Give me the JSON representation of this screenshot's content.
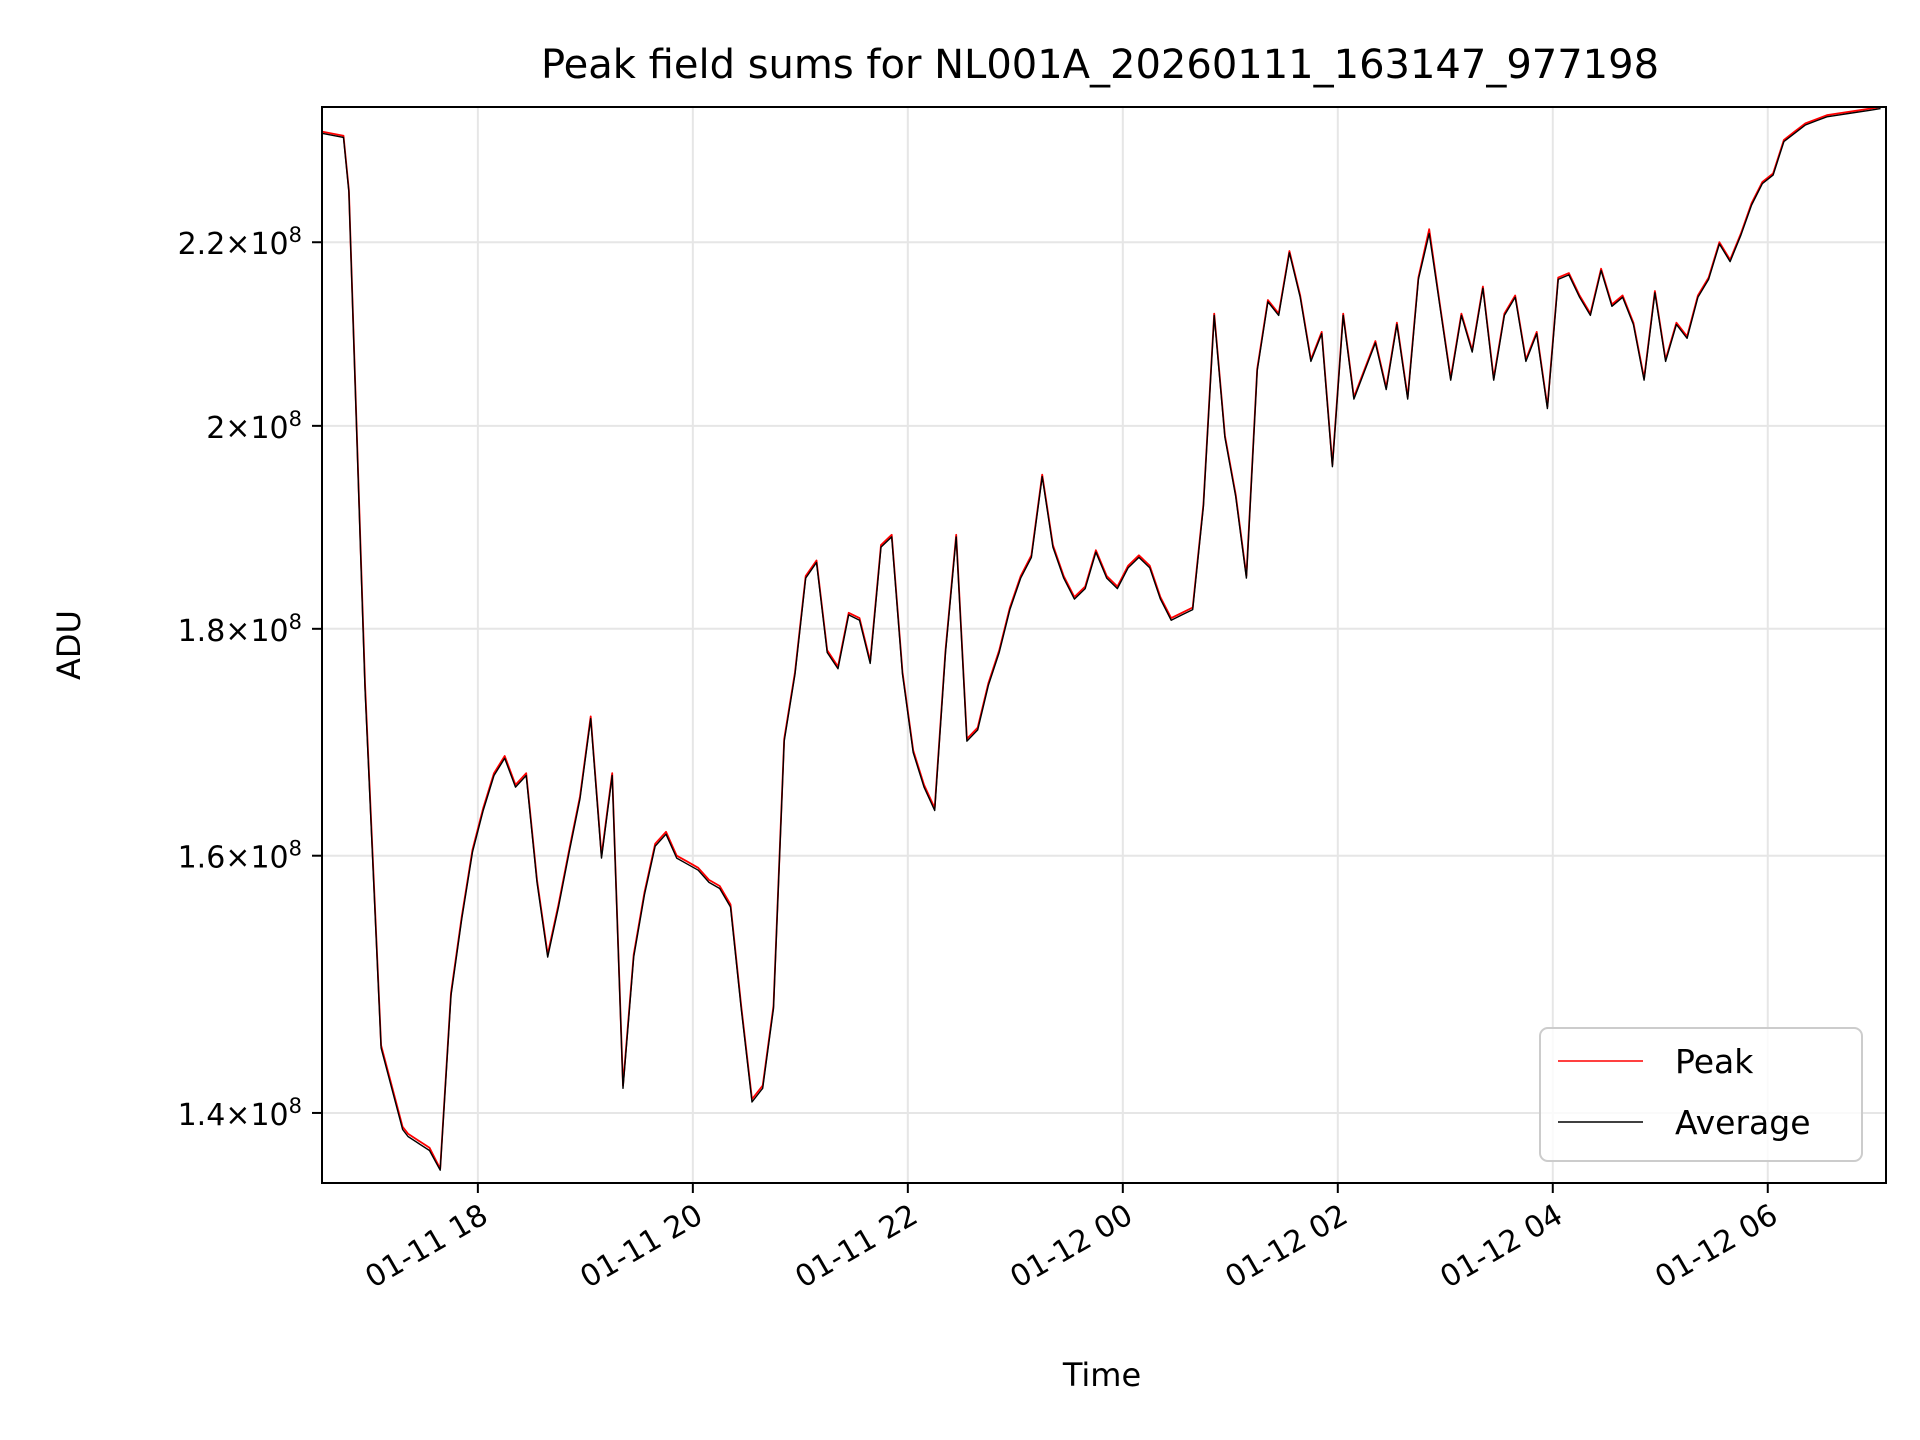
{
  "chart_data": {
    "type": "line",
    "title": "Peak field sums for NL001A_20260111_163147_977198",
    "xlabel": "Time",
    "ylabel": "ADU",
    "y_scale": "log",
    "xlim_hours": [
      16.55,
      31.1
    ],
    "ylim": [
      135000000,
      236000000
    ],
    "grid": true,
    "legend_position": "lower-right",
    "x_ticks": [
      {
        "hour": 18,
        "label": "01-11 18"
      },
      {
        "hour": 20,
        "label": "01-11 20"
      },
      {
        "hour": 22,
        "label": "01-11 22"
      },
      {
        "hour": 24,
        "label": "01-12 00"
      },
      {
        "hour": 26,
        "label": "01-12 02"
      },
      {
        "hour": 28,
        "label": "01-12 04"
      },
      {
        "hour": 30,
        "label": "01-12 06"
      }
    ],
    "y_ticks": [
      {
        "value": 140000000,
        "mantissa": "1.4",
        "base": "10",
        "exp": "8"
      },
      {
        "value": 160000000,
        "mantissa": "1.6",
        "base": "10",
        "exp": "8"
      },
      {
        "value": 180000000,
        "mantissa": "1.8",
        "base": "10",
        "exp": "8"
      },
      {
        "value": 200000000,
        "mantissa": "2",
        "base": "10",
        "exp": "8"
      },
      {
        "value": 220000000,
        "mantissa": "2.2",
        "base": "10",
        "exp": "8"
      }
    ],
    "x_hours": [
      16.55,
      16.75,
      16.8,
      16.95,
      17.1,
      17.3,
      17.35,
      17.45,
      17.55,
      17.65,
      17.75,
      17.85,
      17.95,
      18.05,
      18.15,
      18.25,
      18.35,
      18.45,
      18.55,
      18.65,
      18.75,
      18.85,
      18.95,
      19.05,
      19.15,
      19.25,
      19.35,
      19.45,
      19.55,
      19.65,
      19.75,
      19.85,
      19.95,
      20.05,
      20.15,
      20.25,
      20.35,
      20.45,
      20.55,
      20.65,
      20.75,
      20.85,
      20.95,
      21.05,
      21.15,
      21.25,
      21.35,
      21.45,
      21.55,
      21.65,
      21.75,
      21.85,
      21.95,
      22.05,
      22.15,
      22.25,
      22.35,
      22.45,
      22.55,
      22.65,
      22.75,
      22.85,
      22.95,
      23.05,
      23.15,
      23.25,
      23.35,
      23.45,
      23.55,
      23.65,
      23.75,
      23.85,
      23.95,
      24.05,
      24.15,
      24.25,
      24.35,
      24.45,
      24.55,
      24.65,
      24.75,
      24.85,
      24.95,
      25.05,
      25.15,
      25.25,
      25.35,
      25.45,
      25.55,
      25.65,
      25.75,
      25.85,
      25.95,
      26.05,
      26.15,
      26.25,
      26.35,
      26.45,
      26.55,
      26.65,
      26.75,
      26.85,
      26.95,
      27.05,
      27.15,
      27.25,
      27.35,
      27.45,
      27.55,
      27.65,
      27.75,
      27.85,
      27.95,
      28.05,
      28.15,
      28.25,
      28.35,
      28.45,
      28.55,
      28.65,
      28.75,
      28.85,
      28.95,
      29.05,
      29.15,
      29.25,
      29.35,
      29.45,
      29.55,
      29.65,
      29.75,
      29.85,
      29.95,
      30.05,
      30.15,
      30.25,
      30.35,
      30.45,
      30.55,
      30.65,
      30.75,
      30.85,
      30.95,
      31.05
    ],
    "series": [
      {
        "name": "Peak",
        "color": "#ff0000",
        "values": [
          233000000,
          232500000,
          226000000,
          175000000,
          145000000,
          139000000,
          138500000,
          138000000,
          137500000,
          136000000,
          149000000,
          155000000,
          160500000,
          164000000,
          167000000,
          168500000,
          166000000,
          167000000,
          158000000,
          152000000,
          156000000,
          160500000,
          165000000,
          172000000,
          160000000,
          167000000,
          142000000,
          152000000,
          157000000,
          161000000,
          162000000,
          160000000,
          159500000,
          159000000,
          158000000,
          157500000,
          156000000,
          148000000,
          141000000,
          142000000,
          148000000,
          170000000,
          176000000,
          185000000,
          186500000,
          178000000,
          176500000,
          181500000,
          181000000,
          177000000,
          188000000,
          189000000,
          176000000,
          169000000,
          166000000,
          164000000,
          178000000,
          189000000,
          170000000,
          171000000,
          175000000,
          178000000,
          182000000,
          185000000,
          187000000,
          195000000,
          188000000,
          185000000,
          183000000,
          184000000,
          187500000,
          185000000,
          184000000,
          186000000,
          187000000,
          186000000,
          183000000,
          181000000,
          181500000,
          182000000,
          192000000,
          212000000,
          199000000,
          193000000,
          185000000,
          206000000,
          213500000,
          212000000,
          219000000,
          214000000,
          207000000,
          210000000,
          196000000,
          212000000,
          203000000,
          206000000,
          209000000,
          204000000,
          211000000,
          203000000,
          216000000,
          221500000,
          213000000,
          205000000,
          212000000,
          208000000,
          215000000,
          205000000,
          212000000,
          214000000,
          207000000,
          210000000,
          202000000,
          216000000,
          216500000,
          214000000,
          212000000,
          217000000,
          213000000,
          214000000,
          211000000,
          205000000,
          214500000,
          207000000,
          211000000,
          209500000,
          214000000,
          216000000,
          220000000,
          218000000,
          221000000,
          224500000,
          227000000,
          228000000,
          232000000,
          233000000,
          234000000,
          234500000,
          235000000,
          235200000,
          235400000,
          235600000,
          235800000,
          236000000
        ]
      },
      {
        "name": "Average",
        "color": "#000000",
        "values": [
          232800000,
          232300000,
          225800000,
          174500000,
          144800000,
          138800000,
          138300000,
          137800000,
          137300000,
          135900000,
          148800000,
          154800000,
          160300000,
          163800000,
          166800000,
          168300000,
          165800000,
          166800000,
          157800000,
          151800000,
          155800000,
          160300000,
          164800000,
          171800000,
          159800000,
          166800000,
          141800000,
          151800000,
          156800000,
          160800000,
          161800000,
          159800000,
          159300000,
          158800000,
          157800000,
          157300000,
          155800000,
          147800000,
          140800000,
          141800000,
          147800000,
          169800000,
          175800000,
          184800000,
          186300000,
          177800000,
          176300000,
          181300000,
          180800000,
          176800000,
          187800000,
          188800000,
          175800000,
          168800000,
          165800000,
          163800000,
          177800000,
          188800000,
          169800000,
          170800000,
          174800000,
          177800000,
          181800000,
          184800000,
          186800000,
          194800000,
          187800000,
          184800000,
          182800000,
          183800000,
          187300000,
          184800000,
          183800000,
          185800000,
          186800000,
          185800000,
          182800000,
          180800000,
          181300000,
          181800000,
          191800000,
          211800000,
          198800000,
          192800000,
          184800000,
          205800000,
          213300000,
          211800000,
          218800000,
          213800000,
          206800000,
          209800000,
          195800000,
          211800000,
          202800000,
          205800000,
          208800000,
          203800000,
          210800000,
          202800000,
          215800000,
          221000000,
          212800000,
          204800000,
          211800000,
          207800000,
          214800000,
          204800000,
          211800000,
          213800000,
          206800000,
          209800000,
          201800000,
          215800000,
          216300000,
          213800000,
          211800000,
          216800000,
          212800000,
          213800000,
          210800000,
          204800000,
          214300000,
          206800000,
          210800000,
          209300000,
          213800000,
          215800000,
          219800000,
          217800000,
          220800000,
          224300000,
          226800000,
          227800000,
          231800000,
          232800000,
          233800000,
          234300000,
          234800000,
          235000000,
          235200000,
          235400000,
          235600000,
          235800000
        ]
      }
    ]
  }
}
